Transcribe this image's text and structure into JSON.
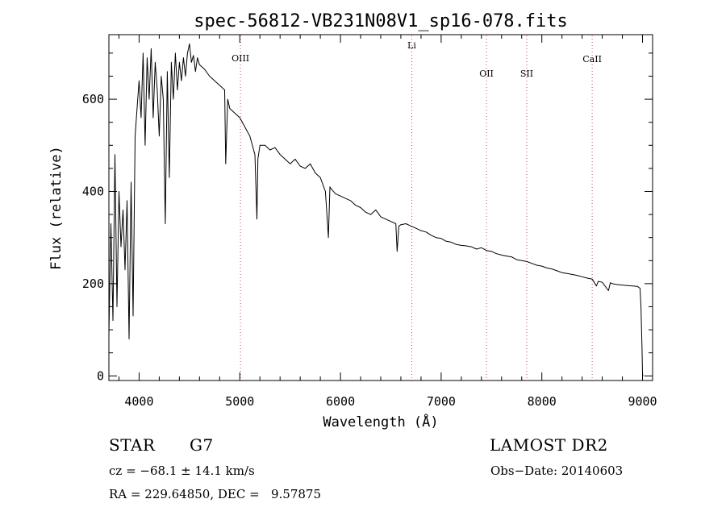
{
  "chart_data": {
    "type": "line",
    "title": "spec-56812-VB231N08V1_sp16-078.fits",
    "xlabel": "Wavelength (Å)",
    "ylabel": "Flux (relative)",
    "xlim": [
      3700,
      9100
    ],
    "ylim": [
      -10,
      740
    ],
    "x_ticks": [
      4000,
      5000,
      6000,
      7000,
      8000,
      9000
    ],
    "x_tick_labels": [
      "4000",
      "5000",
      "6000",
      "7000",
      "8000",
      "9000"
    ],
    "y_ticks": [
      0,
      200,
      400,
      600
    ],
    "y_tick_labels": [
      "0",
      "200",
      "400",
      "600"
    ],
    "grid": false,
    "series": [
      {
        "x": [
          3700,
          3720,
          3740,
          3760,
          3780,
          3800,
          3820,
          3840,
          3860,
          3880,
          3900,
          3920,
          3940,
          3960,
          3980,
          4000,
          4020,
          4040,
          4060,
          4080,
          4100,
          4120,
          4140,
          4160,
          4180,
          4200,
          4220,
          4240,
          4260,
          4280,
          4300,
          4320,
          4340,
          4360,
          4380,
          4400,
          4420,
          4440,
          4460,
          4480,
          4500,
          4520,
          4540,
          4560,
          4580,
          4600,
          4650,
          4700,
          4750,
          4800,
          4850,
          4860,
          4880,
          4900,
          4950,
          5000,
          5050,
          5100,
          5150,
          5170,
          5180,
          5200,
          5250,
          5300,
          5350,
          5400,
          5450,
          5500,
          5550,
          5600,
          5650,
          5700,
          5750,
          5800,
          5850,
          5880,
          5895,
          5910,
          5950,
          6000,
          6050,
          6100,
          6150,
          6200,
          6250,
          6300,
          6350,
          6400,
          6450,
          6500,
          6550,
          6563,
          6580,
          6600,
          6650,
          6700,
          6750,
          6800,
          6850,
          6900,
          6950,
          7000,
          7050,
          7100,
          7150,
          7200,
          7250,
          7300,
          7350,
          7400,
          7450,
          7500,
          7550,
          7600,
          7650,
          7700,
          7750,
          7800,
          7850,
          7900,
          7950,
          8000,
          8050,
          8100,
          8150,
          8200,
          8250,
          8300,
          8350,
          8400,
          8450,
          8500,
          8542,
          8560,
          8600,
          8662,
          8680,
          8700,
          8750,
          8800,
          8850,
          8900,
          8950,
          8975,
          8985,
          8995,
          9000,
          9005
        ],
        "y": [
          90,
          330,
          120,
          480,
          150,
          400,
          280,
          360,
          230,
          380,
          80,
          420,
          130,
          520,
          580,
          640,
          560,
          700,
          500,
          690,
          600,
          710,
          560,
          680,
          620,
          520,
          650,
          600,
          330,
          660,
          430,
          680,
          600,
          700,
          620,
          680,
          640,
          690,
          650,
          700,
          720,
          680,
          695,
          660,
          690,
          675,
          665,
          650,
          640,
          630,
          620,
          460,
          600,
          580,
          570,
          560,
          540,
          520,
          480,
          340,
          470,
          500,
          500,
          490,
          495,
          480,
          470,
          460,
          470,
          455,
          450,
          460,
          440,
          430,
          400,
          300,
          410,
          405,
          395,
          390,
          385,
          380,
          370,
          365,
          355,
          350,
          360,
          345,
          340,
          335,
          330,
          270,
          325,
          328,
          330,
          325,
          320,
          315,
          312,
          305,
          300,
          298,
          292,
          290,
          285,
          283,
          282,
          280,
          275,
          278,
          272,
          270,
          265,
          262,
          260,
          258,
          252,
          250,
          248,
          244,
          240,
          238,
          234,
          232,
          228,
          224,
          222,
          220,
          218,
          215,
          212,
          210,
          195,
          205,
          203,
          185,
          202,
          200,
          198,
          197,
          196,
          195,
          194,
          190,
          150,
          60,
          5,
          0
        ]
      }
    ],
    "lines": [
      {
        "label": "OIII",
        "x": 5007
      },
      {
        "label": "Li",
        "x": 6708
      },
      {
        "label": "OII",
        "x": 7450
      },
      {
        "label": "SII",
        "x": 7850
      },
      {
        "label": "CaII",
        "x": 8500
      }
    ]
  },
  "info": {
    "object_type": "STAR",
    "subclass": "G7",
    "survey": "LAMOST DR2",
    "cz": "cz = −68.1 ± 14.1 km/s",
    "obs_date": "Obs−Date: 20140603",
    "coords": "RA = 229.64850, DEC =   9.57875"
  }
}
